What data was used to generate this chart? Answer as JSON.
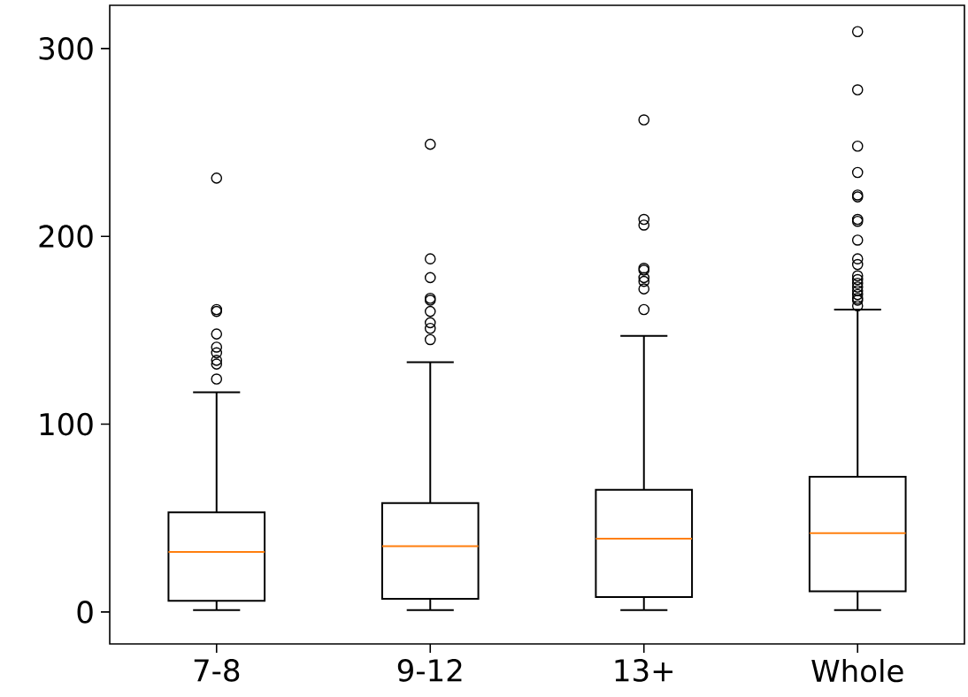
{
  "chart_data": {
    "type": "box",
    "categories": [
      "7-8",
      "9-12",
      "13+",
      "Whole"
    ],
    "boxes": [
      {
        "low": 1,
        "q1": 6,
        "median": 32,
        "q3": 53,
        "high": 117,
        "outliers": [
          124,
          132,
          134,
          138,
          141,
          148,
          160,
          161,
          231
        ]
      },
      {
        "low": 1,
        "q1": 7,
        "median": 35,
        "q3": 58,
        "high": 133,
        "outliers": [
          145,
          151,
          154,
          160,
          166,
          167,
          178,
          188,
          249
        ]
      },
      {
        "low": 1,
        "q1": 8,
        "median": 39,
        "q3": 65,
        "high": 147,
        "outliers": [
          161,
          172,
          176,
          178,
          182,
          183,
          206,
          209,
          262
        ]
      },
      {
        "low": 1,
        "q1": 11,
        "median": 42,
        "q3": 72,
        "high": 161,
        "outliers": [
          163,
          166,
          167,
          169,
          171,
          173,
          175,
          177,
          179,
          185,
          188,
          198,
          208,
          209,
          221,
          222,
          234,
          248,
          278,
          309
        ]
      }
    ],
    "ylim": [
      -17,
      323
    ],
    "yticks": [
      0,
      100,
      200,
      300
    ],
    "marker": "circle"
  }
}
